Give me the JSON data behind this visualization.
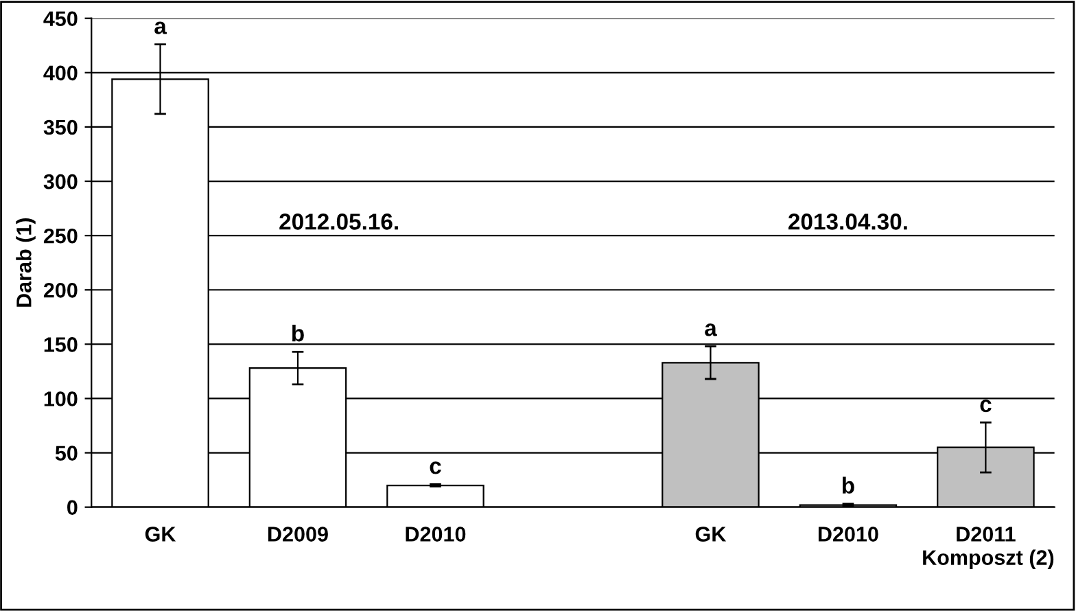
{
  "chart_data": {
    "type": "bar",
    "xlabel": "Komposzt (2)",
    "ylabel": "Darab (1)",
    "categories": [
      "GK",
      "D2009",
      "D2010",
      null,
      "GK",
      "D2010",
      "D2011"
    ],
    "series": [
      {
        "color": "#ffffff",
        "values": [
          394,
          128,
          20,
          null,
          null,
          null,
          null
        ],
        "errors": [
          32,
          15,
          1,
          null,
          null,
          null,
          null
        ],
        "value_labels": [
          "a",
          "b",
          "c",
          null,
          null,
          null,
          null
        ]
      },
      {
        "color": "#c0c0c0",
        "values": [
          null,
          null,
          null,
          null,
          133,
          2,
          55
        ],
        "errors": [
          null,
          null,
          null,
          null,
          15,
          1,
          23
        ],
        "value_labels": [
          null,
          null,
          null,
          null,
          "a",
          "b",
          "c"
        ]
      }
    ],
    "annotations": [
      "2012.05.16.",
      "2013.04.30."
    ],
    "ylim": [
      0,
      450
    ],
    "yticks": [
      0,
      50,
      100,
      150,
      200,
      250,
      300,
      350,
      400,
      450
    ],
    "grid": "y"
  }
}
